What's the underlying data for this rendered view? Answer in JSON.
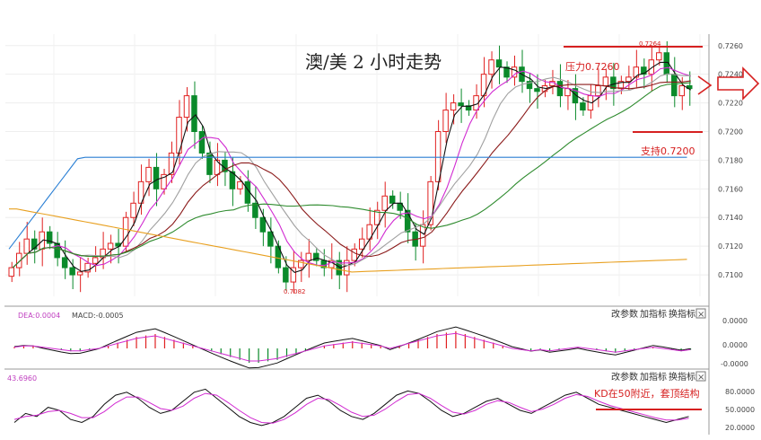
{
  "title": "澳/美 2 小时走势",
  "annotations": {
    "resistance": "压力0.7260",
    "support": "支持0.7200",
    "high_label": "0.7264",
    "low_label": "0.7082",
    "kd_note": "KD在50附近，套顶结构"
  },
  "price_axis_ticks": [
    "0.7260",
    "0.7240",
    "0.7220",
    "0.7200",
    "0.7180",
    "0.7160",
    "0.7140",
    "0.7120",
    "0.7100"
  ],
  "macd_panel": {
    "dea_label": "DEA:0.0004",
    "macd_label": "MACD:-0.0005",
    "ticks": [
      "0.0000",
      "0.0000",
      "-0.0000"
    ],
    "buttons": [
      "改参数",
      "加指标",
      "换指标"
    ],
    "close_symbol": "×"
  },
  "kd_panel": {
    "value_label": "43.6960",
    "ticks": [
      "80.0000",
      "50.0000",
      "20.0000"
    ],
    "buttons": [
      "改参数",
      "加指标",
      "换指标"
    ],
    "close_symbol": "×"
  },
  "colors": {
    "up": "#e02020",
    "down": "#0a8a2a",
    "ma_black": "#111111",
    "ma_pink": "#d12ad1",
    "ma_gray": "#a0a0a0",
    "ma_maroon": "#8b1a1a",
    "ma_green": "#2e8b2e",
    "ma_blue": "#2a7fd4",
    "ma_orange": "#e8a020",
    "level_line": "#d62020"
  },
  "chart_data": {
    "type": "candlestick",
    "title": "澳/美 2 小时走势",
    "ylim": [
      0.7085,
      0.7268
    ],
    "close": [
      0.7105,
      0.7115,
      0.7125,
      0.7118,
      0.713,
      0.7122,
      0.7112,
      0.7105,
      0.71,
      0.7102,
      0.7108,
      0.7112,
      0.7118,
      0.7122,
      0.712,
      0.714,
      0.715,
      0.7165,
      0.7175,
      0.716,
      0.717,
      0.7185,
      0.721,
      0.7225,
      0.72,
      0.7185,
      0.717,
      0.718,
      0.7172,
      0.716,
      0.7165,
      0.715,
      0.714,
      0.713,
      0.712,
      0.7105,
      0.7095,
      0.7105,
      0.711,
      0.7115,
      0.711,
      0.7105,
      0.711,
      0.71,
      0.711,
      0.7118,
      0.7125,
      0.7135,
      0.7145,
      0.7155,
      0.715,
      0.7145,
      0.713,
      0.712,
      0.7135,
      0.7165,
      0.72,
      0.7215,
      0.722,
      0.7218,
      0.7215,
      0.7225,
      0.724,
      0.725,
      0.7245,
      0.7238,
      0.7245,
      0.7235,
      0.723,
      0.7228,
      0.7232,
      0.7235,
      0.7225,
      0.723,
      0.722,
      0.7215,
      0.7225,
      0.7232,
      0.7238,
      0.723,
      0.7235,
      0.7238,
      0.7245,
      0.724,
      0.725,
      0.7255,
      0.724,
      0.7225,
      0.7232,
      0.723
    ],
    "macd_hist": [
      0.1,
      0.2,
      0.2,
      0.1,
      0.0,
      -0.1,
      -0.2,
      -0.2,
      -0.1,
      0.0,
      0.2,
      0.4,
      0.6,
      0.8,
      0.9,
      1.0,
      0.8,
      0.6,
      0.4,
      0.2,
      0.0,
      -0.2,
      -0.4,
      -0.6,
      -0.8,
      -1.0,
      -1.0,
      -0.9,
      -0.8,
      -0.6,
      -0.4,
      -0.2,
      0.0,
      0.2,
      0.3,
      0.4,
      0.5,
      0.4,
      0.3,
      0.2,
      0.0,
      0.2,
      0.4,
      0.6,
      0.8,
      1.0,
      1.1,
      1.2,
      1.0,
      0.8,
      0.6,
      0.4,
      0.2,
      0.0,
      -0.1,
      -0.2,
      -0.1,
      -0.2,
      -0.1,
      0.0,
      0.1,
      0.0,
      -0.1,
      -0.2,
      -0.3,
      -0.2,
      -0.1,
      0.0,
      0.1,
      0.0,
      -0.1,
      -0.2,
      -0.1
    ],
    "kd": {
      "k": [
        30,
        45,
        40,
        55,
        50,
        35,
        30,
        40,
        60,
        75,
        80,
        70,
        55,
        45,
        50,
        65,
        80,
        85,
        70,
        55,
        40,
        30,
        25,
        30,
        40,
        55,
        70,
        75,
        65,
        50,
        40,
        35,
        45,
        60,
        75,
        82,
        78,
        65,
        50,
        40,
        45,
        55,
        65,
        70,
        60,
        50,
        45,
        55,
        65,
        75,
        80,
        70,
        60,
        55,
        50,
        45,
        40,
        35,
        30,
        35,
        40
      ],
      "d": [
        35,
        40,
        42,
        48,
        50,
        45,
        38,
        38,
        48,
        62,
        72,
        72,
        63,
        53,
        50,
        57,
        70,
        78,
        75,
        63,
        50,
        38,
        30,
        29,
        35,
        46,
        60,
        70,
        68,
        58,
        47,
        40,
        42,
        52,
        65,
        76,
        78,
        70,
        58,
        47,
        44,
        50,
        60,
        66,
        63,
        55,
        48,
        52,
        60,
        70,
        76,
        73,
        65,
        58,
        53,
        48,
        43,
        38,
        34,
        34,
        37
      ]
    }
  }
}
